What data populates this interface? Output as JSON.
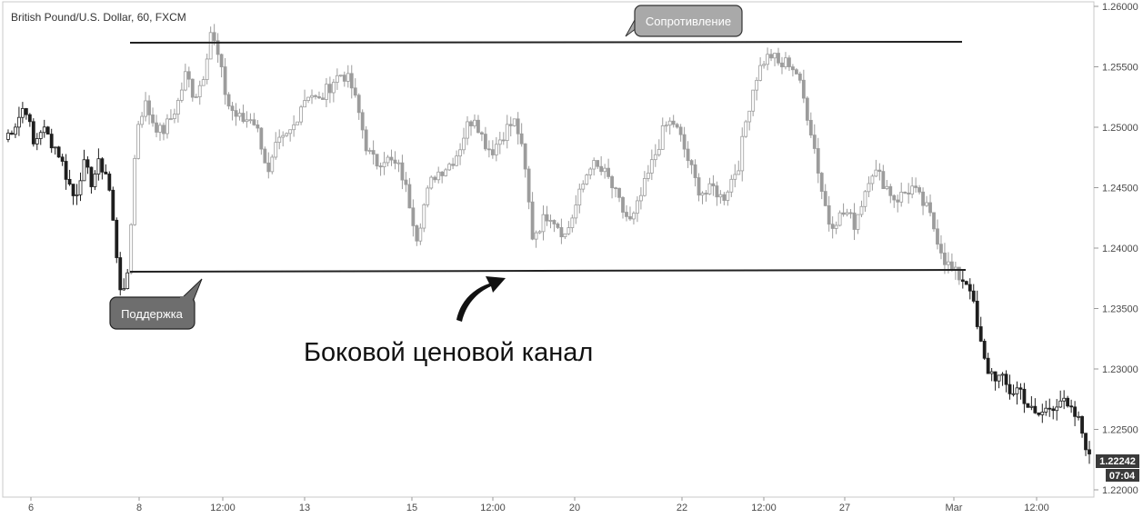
{
  "chart_data": {
    "type": "candlestick",
    "title": "British Pound/U.S. Dollar, 60, FXCM",
    "ylim": [
      1.2185,
      1.2615
    ],
    "y_ticks": [
      "1.26000",
      "1.25500",
      "1.25000",
      "1.24500",
      "1.24000",
      "1.23500",
      "1.23000",
      "1.22500",
      "1.22000"
    ],
    "y_tick_values": [
      1.26,
      1.255,
      1.25,
      1.245,
      1.24,
      1.235,
      1.23,
      1.225,
      1.22
    ],
    "x_ticks": [
      "6",
      "8",
      "12:00",
      "13",
      "15",
      "12:00",
      "20",
      "22",
      "12:00",
      "27",
      "Mar",
      "12:00"
    ],
    "last_price": "1.22242",
    "countdown": "07:04",
    "resistance": {
      "label": "Сопротивление",
      "value": 1.2571
    },
    "support": {
      "label": "Поддержка",
      "value": 1.2381
    },
    "caption": "Боковой ценовой канал",
    "grid": false,
    "price_path": [
      [
        0,
        1.249
      ],
      [
        3,
        1.2505
      ],
      [
        5,
        1.252
      ],
      [
        7,
        1.2485
      ],
      [
        9,
        1.25
      ],
      [
        11,
        1.249
      ],
      [
        13,
        1.248
      ],
      [
        15,
        1.246
      ],
      [
        17,
        1.244
      ],
      [
        19,
        1.247
      ],
      [
        21,
        1.2455
      ],
      [
        23,
        1.247
      ],
      [
        25,
        1.246
      ],
      [
        27,
        1.24
      ],
      [
        28,
        1.237
      ],
      [
        29,
        1.236
      ],
      [
        30,
        1.2385
      ],
      [
        31,
        1.244
      ],
      [
        32,
        1.25
      ],
      [
        34,
        1.252
      ],
      [
        36,
        1.2505
      ],
      [
        38,
        1.2495
      ],
      [
        40,
        1.2505
      ],
      [
        42,
        1.252
      ],
      [
        44,
        1.2545
      ],
      [
        46,
        1.2525
      ],
      [
        48,
        1.254
      ],
      [
        49,
        1.256
      ],
      [
        50,
        1.258
      ],
      [
        52,
        1.2555
      ],
      [
        54,
        1.252
      ],
      [
        56,
        1.251
      ],
      [
        58,
        1.2505
      ],
      [
        60,
        1.251
      ],
      [
        62,
        1.249
      ],
      [
        64,
        1.246
      ],
      [
        66,
        1.2485
      ],
      [
        68,
        1.249
      ],
      [
        70,
        1.25
      ],
      [
        72,
        1.252
      ],
      [
        74,
        1.253
      ],
      [
        76,
        1.252
      ],
      [
        78,
        1.253
      ],
      [
        80,
        1.254
      ],
      [
        82,
        1.2545
      ],
      [
        84,
        1.2535
      ],
      [
        86,
        1.251
      ],
      [
        88,
        1.248
      ],
      [
        90,
        1.247
      ],
      [
        92,
        1.2475
      ],
      [
        94,
        1.247
      ],
      [
        96,
        1.2465
      ],
      [
        98,
        1.244
      ],
      [
        100,
        1.241
      ],
      [
        102,
        1.244
      ],
      [
        104,
        1.246
      ],
      [
        106,
        1.2465
      ],
      [
        108,
        1.247
      ],
      [
        110,
        1.248
      ],
      [
        112,
        1.25
      ],
      [
        114,
        1.251
      ],
      [
        116,
        1.249
      ],
      [
        118,
        1.248
      ],
      [
        120,
        1.249
      ],
      [
        122,
        1.25
      ],
      [
        124,
        1.2505
      ],
      [
        126,
        1.247
      ],
      [
        128,
        1.241
      ],
      [
        130,
        1.242
      ],
      [
        132,
        1.243
      ],
      [
        134,
        1.242
      ],
      [
        136,
        1.241
      ],
      [
        138,
        1.243
      ],
      [
        140,
        1.245
      ],
      [
        142,
        1.247
      ],
      [
        144,
        1.2465
      ],
      [
        146,
        1.246
      ],
      [
        148,
        1.2445
      ],
      [
        150,
        1.243
      ],
      [
        152,
        1.242
      ],
      [
        154,
        1.244
      ],
      [
        156,
        1.246
      ],
      [
        158,
        1.248
      ],
      [
        160,
        1.25
      ],
      [
        162,
        1.2505
      ],
      [
        164,
        1.249
      ],
      [
        166,
        1.247
      ],
      [
        168,
        1.245
      ],
      [
        170,
        1.2445
      ],
      [
        172,
        1.245
      ],
      [
        174,
        1.244
      ],
      [
        176,
        1.2455
      ],
      [
        178,
        1.247
      ],
      [
        180,
        1.251
      ],
      [
        182,
        1.254
      ],
      [
        184,
        1.2555
      ],
      [
        186,
        1.256
      ],
      [
        188,
        1.255
      ],
      [
        190,
        1.2555
      ],
      [
        192,
        1.2545
      ],
      [
        194,
        1.252
      ],
      [
        196,
        1.249
      ],
      [
        198,
        1.245
      ],
      [
        200,
        1.242
      ],
      [
        202,
        1.2425
      ],
      [
        204,
        1.243
      ],
      [
        206,
        1.242
      ],
      [
        208,
        1.244
      ],
      [
        210,
        1.2465
      ],
      [
        212,
        1.246
      ],
      [
        214,
        1.245
      ],
      [
        216,
        1.244
      ],
      [
        218,
        1.2445
      ],
      [
        220,
        1.245
      ],
      [
        222,
        1.244
      ],
      [
        224,
        1.243
      ],
      [
        226,
        1.241
      ],
      [
        228,
        1.239
      ],
      [
        230,
        1.238
      ],
      [
        232,
        1.2375
      ],
      [
        234,
        1.237
      ],
      [
        236,
        1.233
      ],
      [
        238,
        1.23
      ],
      [
        240,
        1.2295
      ],
      [
        242,
        1.229
      ],
      [
        244,
        1.228
      ],
      [
        246,
        1.2285
      ],
      [
        248,
        1.227
      ],
      [
        250,
        1.226
      ],
      [
        252,
        1.2265
      ],
      [
        254,
        1.227
      ],
      [
        256,
        1.2275
      ],
      [
        258,
        1.2265
      ],
      [
        260,
        1.226
      ],
      [
        262,
        1.224
      ],
      [
        263,
        1.2225
      ]
    ]
  }
}
